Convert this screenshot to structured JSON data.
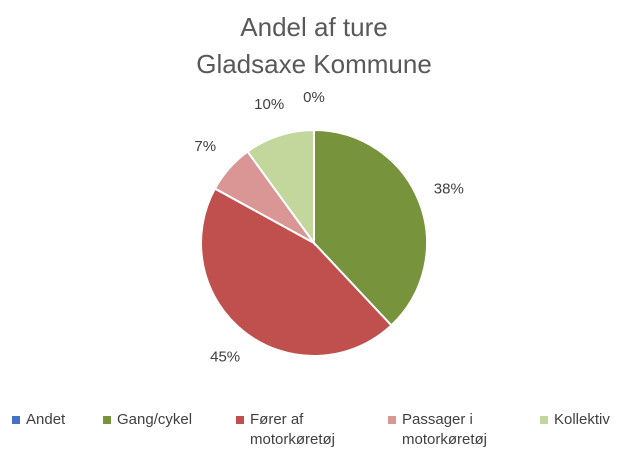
{
  "chart_data": {
    "type": "pie",
    "title": [
      "Andel af ture",
      "Gladsaxe Kommune"
    ],
    "categories": [
      "Andet",
      "Gang/cykel",
      "Fører af motorkøretøj",
      "Passager i motorkøretøj",
      "Kollektiv"
    ],
    "values": [
      0,
      38,
      45,
      7,
      10
    ],
    "value_labels": [
      "0%",
      "38%",
      "45%",
      "7%",
      "10%"
    ],
    "colors": [
      "#4472c4",
      "#77933c",
      "#c0504d",
      "#d99694",
      "#c3d69b"
    ],
    "legend": "bottom"
  }
}
